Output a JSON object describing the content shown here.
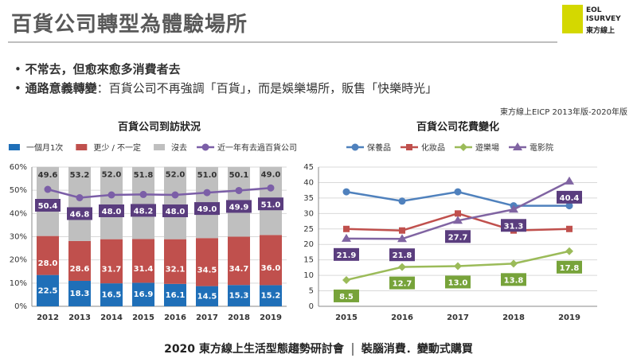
{
  "title": "百貨公司轉型為體驗場所",
  "logo": [
    "EOL",
    "ISURVEY",
    "東方線上"
  ],
  "bullets": [
    {
      "label": "不常去，但愈來愈多消費者去"
    },
    {
      "label": "通路意義轉變",
      "text": "：百貨公司不再強調「百貨」，而是娛樂場所，販售「快樂時光」"
    }
  ],
  "source": "東方線上EICP 2013年版-2020年版",
  "footer": [
    "2020 東方線上生活型態趨勢研討會",
    "裝腦消費．變動式購買"
  ],
  "chart_data": [
    {
      "type": "stacked_bar_line",
      "title": "百貨公司到訪狀況",
      "categories": [
        "2012",
        "2013",
        "2014",
        "2015",
        "2016",
        "2017",
        "2018",
        "2019"
      ],
      "series": [
        {
          "name": "一個月1次",
          "color": "#1f6fb8",
          "axis": "y2",
          "values": [
            22.5,
            18.3,
            16.5,
            16.9,
            16.1,
            14.5,
            15.3,
            15.2
          ],
          "value_labels": [
            "22.5",
            "18.3",
            "16.5",
            "16.9",
            "16.1",
            "14.5",
            "15.3",
            "15.2"
          ]
        },
        {
          "name": "更少 / 不一定",
          "color": "#c0504d",
          "axis": "y2",
          "values": [
            28.0,
            28.6,
            31.7,
            31.4,
            32.1,
            34.5,
            34.7,
            36.0
          ],
          "value_labels": [
            "28.0",
            "28.6",
            "31.7",
            "31.4",
            "32.1",
            "34.5",
            "34.7",
            "36.0"
          ]
        },
        {
          "name": "沒去",
          "color": "#bfbfbf",
          "axis": "y2",
          "values": [
            49.6,
            53.2,
            52.0,
            51.8,
            52.0,
            51.0,
            50.1,
            49.0
          ],
          "value_labels": [
            "49.6",
            "53.2",
            "52.0",
            "51.8",
            "52.0",
            "51.0",
            "50.1",
            "49.0"
          ]
        },
        {
          "name": "近一年有去過百貨公司",
          "color": "#7b5ea7",
          "label_color": "#5a3d7e",
          "marker": "circle",
          "values": [
            50.4,
            46.8,
            48.0,
            48.2,
            48.0,
            49.0,
            49.9,
            51.0
          ],
          "value_labels": [
            "50.4",
            "46.8",
            "48.0",
            "48.2",
            "48.0",
            "49.0",
            "49.9",
            "51.0"
          ]
        }
      ],
      "ylim": [
        0,
        60
      ],
      "yticks": [
        {
          "value": 0,
          "label": "0%"
        },
        {
          "value": 10,
          "label": "10%"
        },
        {
          "value": 20,
          "label": "20%"
        },
        {
          "value": 30,
          "label": "30%"
        },
        {
          "value": 40,
          "label": "40%"
        },
        {
          "value": 50,
          "label": "50%"
        },
        {
          "value": 60,
          "label": "60%"
        }
      ],
      "y2lim": [
        0,
        100
      ],
      "grid": true
    },
    {
      "type": "line",
      "title": "百貨公司花費變化",
      "categories": [
        "2015",
        "2016",
        "2017",
        "2018",
        "2019"
      ],
      "series": [
        {
          "name": "保養品",
          "color": "#4f81bd",
          "marker": "circle",
          "values": [
            37,
            34,
            37,
            32.5,
            32.5
          ]
        },
        {
          "name": "化妝品",
          "color": "#c0504d",
          "marker": "square",
          "values": [
            25,
            24.5,
            30,
            24.5,
            25
          ]
        },
        {
          "name": "遊樂場",
          "color": "#9bbb59",
          "label_color": "#77a33a",
          "marker": "diamond",
          "values": [
            8.5,
            12.7,
            13.0,
            13.8,
            17.8
          ],
          "value_labels": [
            "8.5",
            "12.7",
            "13.0",
            "13.8",
            "17.8"
          ]
        },
        {
          "name": "電影院",
          "color": "#8064a2",
          "label_color": "#5a3d7e",
          "marker": "triangle",
          "values": [
            21.9,
            21.8,
            27.7,
            31.3,
            40.4
          ],
          "value_labels": [
            "21.9",
            "21.8",
            "27.7",
            "31.3",
            "40.4"
          ]
        }
      ],
      "ylim": [
        0,
        45
      ],
      "yticks": [
        0,
        5,
        10,
        15,
        20,
        25,
        30,
        35,
        40,
        45
      ],
      "grid": true
    }
  ]
}
